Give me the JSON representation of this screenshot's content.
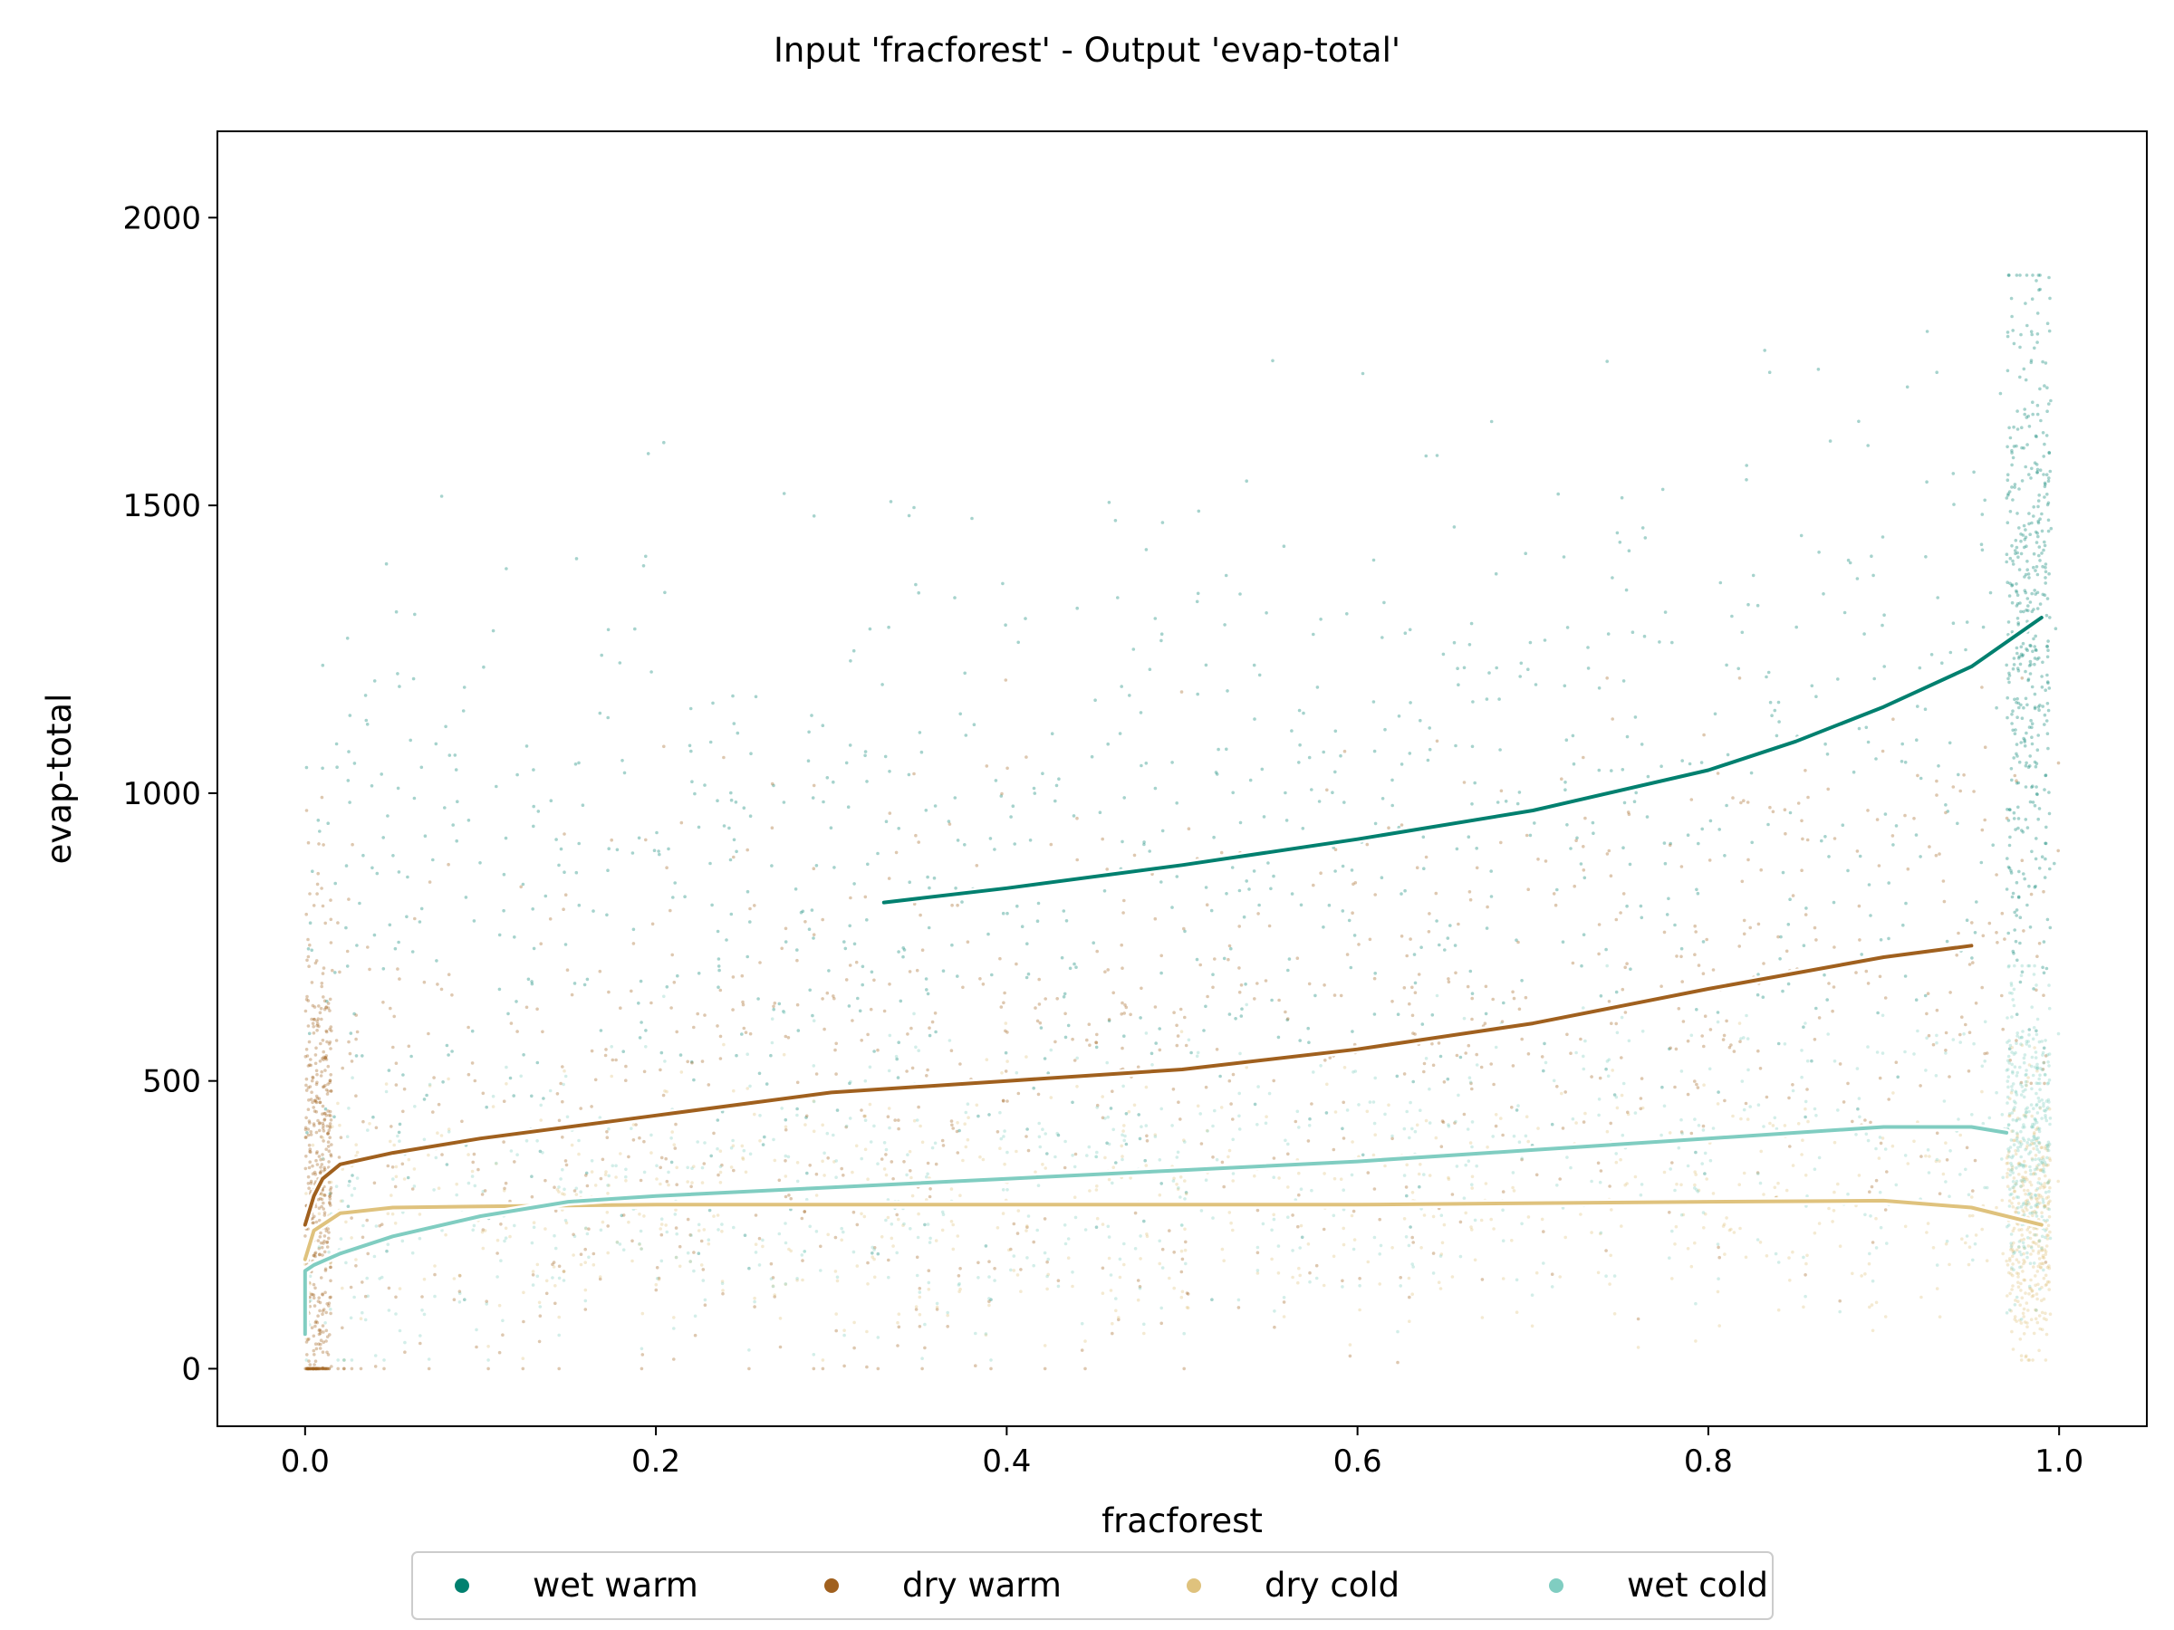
{
  "chart_data": {
    "type": "scatter",
    "title": "Input 'fracforest' - Output 'evap-total'",
    "xlabel": "fracforest",
    "ylabel": "evap-total",
    "xlim": [
      -0.05,
      1.05
    ],
    "ylim": [
      -100,
      2150
    ],
    "xticks": [
      0.0,
      0.2,
      0.4,
      0.6,
      0.8,
      1.0
    ],
    "xtick_labels": [
      "0.0",
      "0.2",
      "0.4",
      "0.6",
      "0.8",
      "1.0"
    ],
    "yticks": [
      0,
      500,
      1000,
      1500,
      2000
    ],
    "ytick_labels": [
      "0",
      "500",
      "1000",
      "1500",
      "2000"
    ],
    "grid": false,
    "legend_position": "below plot, centered",
    "legend_columns": 4,
    "series": [
      {
        "name": "wet warm",
        "color": "#00806f",
        "trend": {
          "x": [
            0.33,
            0.4,
            0.5,
            0.6,
            0.7,
            0.8,
            0.85,
            0.9,
            0.95,
            0.99
          ],
          "y": [
            810,
            835,
            875,
            920,
            970,
            1040,
            1090,
            1150,
            1220,
            1305
          ]
        },
        "scatter_summary": {
          "x_range": [
            0.0,
            1.0
          ],
          "y_typical_range": [
            400,
            1900
          ],
          "dense_near_x": 1.0
        }
      },
      {
        "name": "dry warm",
        "color": "#a0601e",
        "trend": {
          "x": [
            0.0,
            0.005,
            0.01,
            0.02,
            0.05,
            0.1,
            0.2,
            0.3,
            0.4,
            0.5,
            0.6,
            0.7,
            0.8,
            0.9,
            0.95
          ],
          "y": [
            250,
            300,
            330,
            355,
            375,
            400,
            440,
            480,
            500,
            520,
            555,
            600,
            660,
            715,
            735
          ]
        },
        "scatter_summary": {
          "x_range": [
            0.0,
            1.0
          ],
          "y_typical_range": [
            0,
            1200
          ],
          "dense_near_x": 0.0
        }
      },
      {
        "name": "dry cold",
        "color": "#dfc27d",
        "trend": {
          "x": [
            0.0,
            0.005,
            0.02,
            0.05,
            0.1,
            0.2,
            0.4,
            0.6,
            0.8,
            0.9,
            0.95,
            0.99
          ],
          "y": [
            190,
            240,
            270,
            280,
            282,
            285,
            285,
            285,
            290,
            292,
            280,
            250
          ]
        },
        "scatter_summary": {
          "x_range": [
            0.0,
            1.0
          ],
          "y_typical_range": [
            50,
            600
          ],
          "dense_near_x": 1.0
        }
      },
      {
        "name": "wet cold",
        "color": "#80cdc1",
        "trend": {
          "x": [
            0.0,
            0.0,
            0.005,
            0.02,
            0.05,
            0.1,
            0.15,
            0.2,
            0.3,
            0.4,
            0.5,
            0.6,
            0.7,
            0.8,
            0.9,
            0.95,
            0.97
          ],
          "y": [
            60,
            170,
            180,
            200,
            230,
            265,
            290,
            300,
            315,
            330,
            345,
            360,
            380,
            400,
            420,
            420,
            410
          ]
        },
        "scatter_summary": {
          "x_range": [
            0.0,
            1.0
          ],
          "y_typical_range": [
            50,
            700
          ],
          "dense_near_x": 1.0
        }
      }
    ]
  }
}
